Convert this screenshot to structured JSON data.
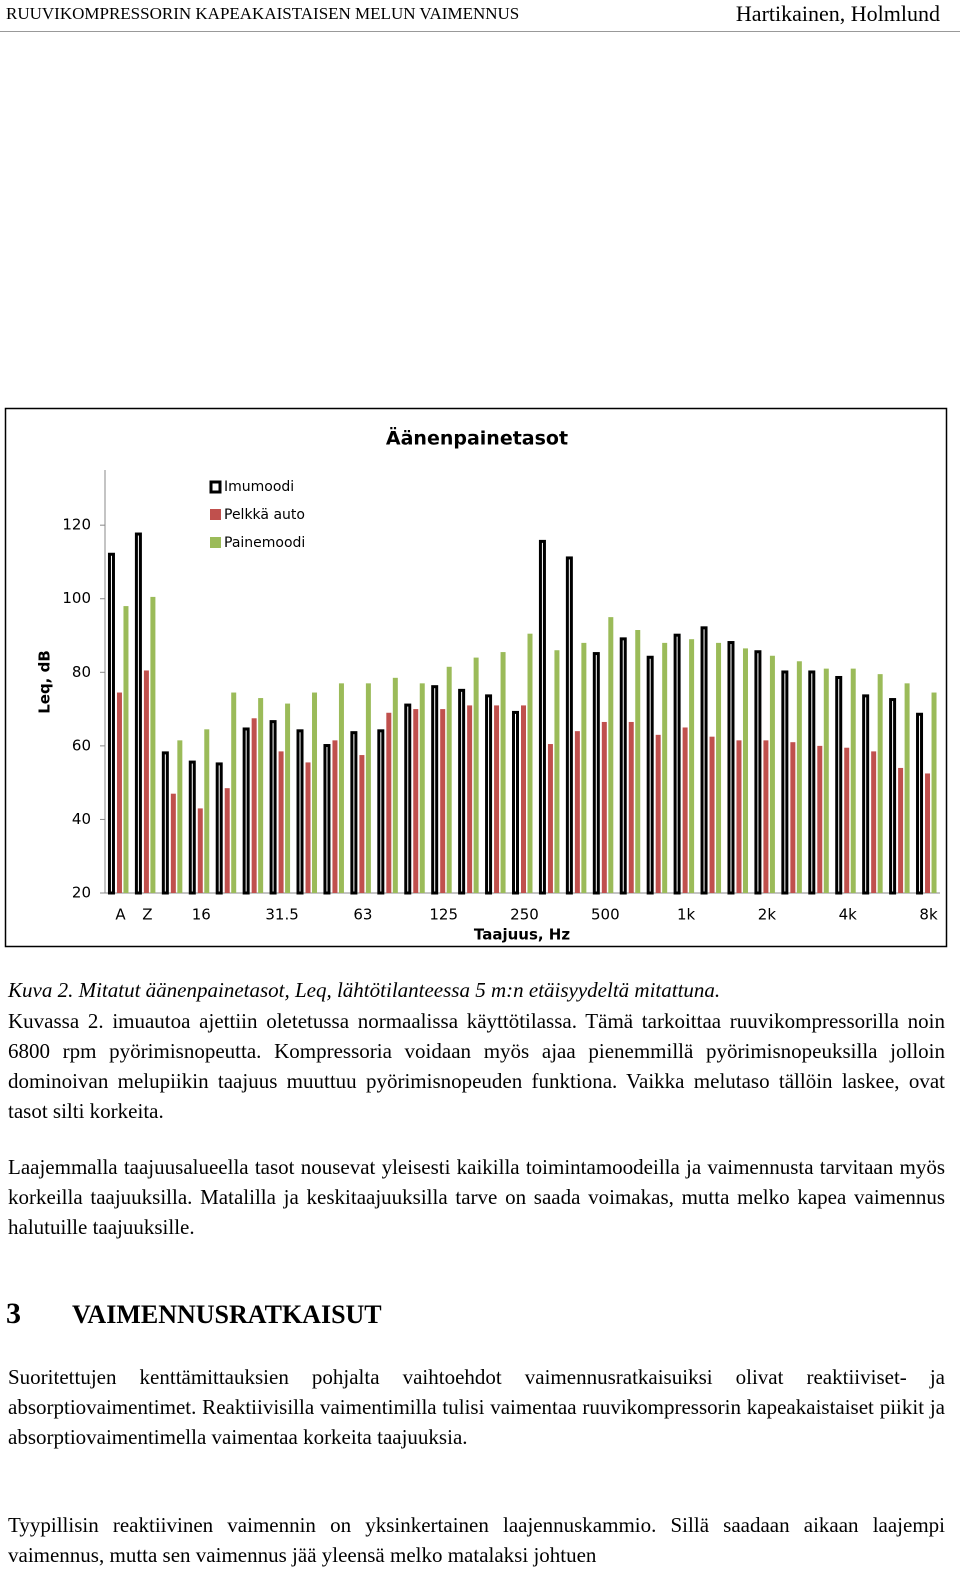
{
  "header": {
    "left": "RUUVIKOMPRESSORIN KAPEAKAISTAISEN MELUN VAIMENNUS",
    "right": "Hartikainen, Holmlund"
  },
  "chart_data": {
    "type": "bar",
    "title": "Äänenpainetasot",
    "x_label": "Taajuus, Hz",
    "y_label": "Leq, dB",
    "categories": [
      "A",
      "Z",
      null,
      "16",
      null,
      null,
      "31.5",
      null,
      null,
      "63",
      null,
      null,
      "125",
      null,
      null,
      "250",
      null,
      null,
      "500",
      null,
      null,
      "1k",
      null,
      null,
      "2k",
      null,
      null,
      "4k",
      null,
      null,
      "8k"
    ],
    "series": [
      {
        "name": "Imumoodi",
        "color": "#000000",
        "values": [
          112.5,
          118,
          58.5,
          56,
          55.5,
          65,
          67,
          64.5,
          60.5,
          64,
          64.5,
          71.5,
          76.5,
          75.5,
          74,
          69.5,
          116,
          111.5,
          85.5,
          89.5,
          84.5,
          90.5,
          92.5,
          88.5,
          86,
          80.5,
          80.5,
          79,
          74,
          73,
          69
        ]
      },
      {
        "name": "Pelkkä auto",
        "color": "#c0504d",
        "values": [
          74.5,
          80.5,
          47,
          43,
          48.5,
          67.5,
          58.5,
          55.5,
          61.5,
          57.5,
          69,
          70,
          70,
          71,
          71,
          71,
          60.5,
          64,
          66.5,
          66.5,
          63,
          65,
          62.5,
          61.5,
          61.5,
          61,
          60,
          59.5,
          58.5,
          54,
          52.5
        ]
      },
      {
        "name": "Painemoodi",
        "color": "#9bbb59",
        "values": [
          98,
          100.5,
          61.5,
          64.5,
          74.5,
          73,
          71.5,
          74.5,
          77,
          77,
          78.5,
          77,
          81.5,
          84,
          85.5,
          90.5,
          86,
          88,
          95,
          91.5,
          88,
          89,
          88,
          86.5,
          84.5,
          83,
          81,
          81,
          79.5,
          77,
          74.5
        ]
      }
    ],
    "ylim": [
      20,
      135
    ],
    "yticks": [
      20,
      40,
      60,
      80,
      100,
      120
    ]
  },
  "caption": "Kuva 2. Mitatut äänenpainetasot, Leq,  lähtötilanteessa 5 m:n etäisyydeltä mitattuna.",
  "paragraphs": [
    "Kuvassa 2. imuautoa ajettiin oletetussa normaalissa käyttötilassa. Tämä tarkoittaa ruuvikompressorilla noin 6800 rpm pyörimisnopeutta. Kompressoria voidaan myös ajaa pienemmillä pyörimisnopeuksilla jolloin dominoivan melupiikin taajuus muuttuu pyörimisnopeuden funktiona. Vaikka melutaso tällöin laskee, ovat tasot silti korkeita.",
    "Laajemmalla taajuusalueella tasot nousevat yleisesti kaikilla toimintamoodeilla ja vaimennusta tarvitaan myös korkeilla taajuuksilla. Matalilla ja keskitaajuuksilla tarve on saada voimakas, mutta melko kapea vaimennus halutuille taajuuksille."
  ],
  "section": {
    "number": "3",
    "title": "VAIMENNUSRATKAISUT"
  },
  "section_paragraphs": [
    "Suoritettujen kenttämittauksien pohjalta vaihtoehdot vaimennusratkaisuiksi olivat reaktiiviset- ja absorptiovaimentimet. Reaktiivisilla vaimentimilla tulisi vaimentaa ruuvikompressorin kapeakaistaiset piikit ja absorptiovaimentimella vaimentaa korkeita taajuuksia.",
    "Tyypillisin reaktiivinen vaimennin on yksinkertainen laajennuskammio. Sillä saadaan aikaan laajempi vaimennus, mutta sen vaimennus jää yleensä melko matalaksi johtuen"
  ]
}
